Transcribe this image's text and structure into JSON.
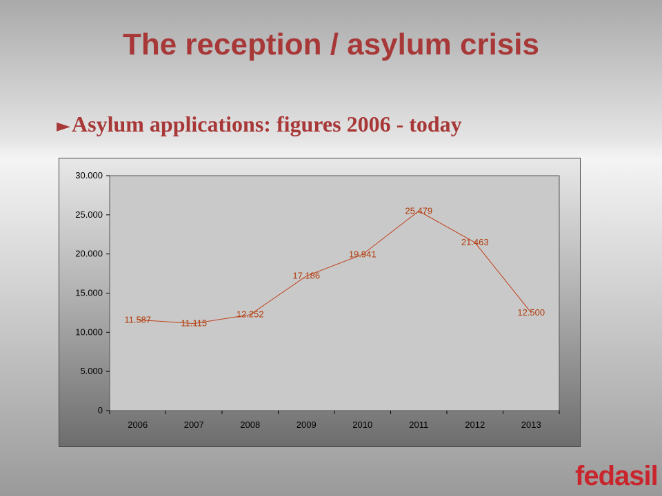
{
  "slide": {
    "title": "The reception / asylum crisis",
    "subtitle_bullet": "►",
    "subtitle": "Asylum applications: figures 2006 - today"
  },
  "logo": {
    "text": "fedasil",
    "color": "#c9252c"
  },
  "colors": {
    "title": "#a83838",
    "series": "#c0401a",
    "data_label": "#b03a08"
  },
  "chart_data": {
    "type": "line",
    "title": "",
    "xlabel": "",
    "ylabel": "",
    "categories": [
      "2006",
      "2007",
      "2008",
      "2009",
      "2010",
      "2011",
      "2012",
      "2013"
    ],
    "series": [
      {
        "name": "",
        "values": [
          11587,
          11115,
          12252,
          17186,
          19941,
          25479,
          21463,
          12500
        ],
        "labels": [
          "11.587",
          "11.115",
          "12.252",
          "17.186",
          "19.941",
          "25.479",
          "21.463",
          "12.500"
        ]
      }
    ],
    "ylim": [
      0,
      30000
    ],
    "yticks": [
      0,
      5000,
      10000,
      15000,
      20000,
      25000,
      30000
    ],
    "ytick_labels": [
      "0",
      "5.000",
      "10.000",
      "15.000",
      "20.000",
      "25.000",
      "30.000"
    ],
    "grid": false,
    "legend": "none"
  }
}
